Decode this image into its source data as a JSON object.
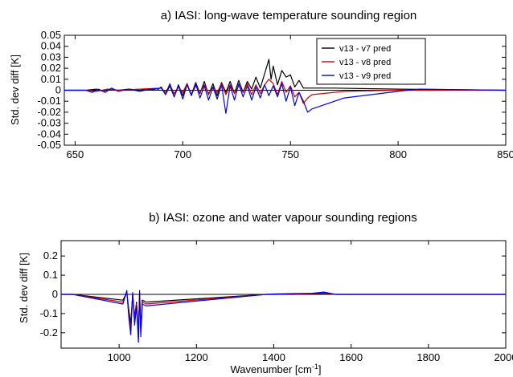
{
  "chart_data": [
    {
      "type": "line",
      "title": "a) IASI: long-wave temperature sounding region",
      "xlabel": "",
      "ylabel": "Std. dev diff [K]",
      "xlim": [
        645,
        850
      ],
      "ylim": [
        -0.05,
        0.05
      ],
      "xticks": [
        650,
        700,
        750,
        800,
        850
      ],
      "yticks": [
        -0.05,
        -0.04,
        -0.03,
        -0.02,
        -0.01,
        0,
        0.01,
        0.02,
        0.03,
        0.04,
        0.05
      ],
      "ytick_labels": [
        "-0.05",
        "-0.04",
        "-0.03",
        "-0.02",
        "-0.01",
        "0",
        "0.01",
        "0.02",
        "0.03",
        "0.04",
        "0.05"
      ],
      "grid": false,
      "legend_position": "top-right",
      "zero_line": true,
      "series": [
        {
          "name": "v13 - v7 pred",
          "color": "#000000",
          "x": [
            645,
            655,
            660,
            663,
            666,
            670,
            675,
            680,
            685,
            688,
            690,
            692,
            694,
            696,
            698,
            700,
            702,
            704,
            706,
            708,
            710,
            712,
            714,
            716,
            718,
            720,
            722,
            724,
            726,
            728,
            730,
            732,
            734,
            736,
            738,
            740,
            741,
            742,
            744,
            746,
            748,
            750,
            752,
            754,
            756,
            760,
            770,
            800,
            850
          ],
          "y": [
            0,
            0,
            0.001,
            -0.001,
            0.001,
            0,
            0.001,
            0,
            0.001,
            0,
            0.003,
            -0.004,
            0.004,
            -0.006,
            0.005,
            -0.005,
            0.006,
            -0.004,
            0.007,
            -0.003,
            0.008,
            -0.004,
            0.006,
            -0.005,
            0.007,
            -0.002,
            0.008,
            -0.003,
            0.009,
            -0.002,
            0.008,
            0.001,
            0.012,
            0.002,
            0.015,
            0.028,
            0.01,
            0.022,
            0.005,
            0.018,
            0.012,
            0.014,
            0.003,
            0.009,
            0.002,
            0.002,
            0.002,
            0.001,
            0
          ]
        },
        {
          "name": "v13 - v8 pred",
          "color": "#d00000",
          "x": [
            645,
            655,
            660,
            665,
            670,
            680,
            690,
            692,
            694,
            696,
            698,
            700,
            702,
            704,
            706,
            708,
            710,
            712,
            714,
            716,
            718,
            720,
            722,
            724,
            726,
            728,
            730,
            732,
            734,
            736,
            738,
            740,
            742,
            744,
            746,
            748,
            750,
            752,
            754,
            756,
            758,
            760,
            775,
            800,
            850
          ],
          "y": [
            0,
            0,
            -0.001,
            0.001,
            0,
            0.001,
            0.002,
            -0.002,
            0.005,
            -0.003,
            0.003,
            -0.002,
            0.006,
            -0.004,
            0.004,
            -0.002,
            0.005,
            -0.003,
            0.003,
            -0.002,
            0.006,
            -0.004,
            0.005,
            -0.003,
            0.004,
            -0.002,
            0.006,
            -0.004,
            0.005,
            -0.003,
            0.005,
            0.01,
            0.006,
            -0.004,
            0.008,
            -0.002,
            0.004,
            -0.006,
            -0.002,
            -0.012,
            -0.007,
            -0.004,
            -0.001,
            0,
            0
          ]
        },
        {
          "name": "v13 - v9 pred",
          "color": "#0000ee",
          "x": [
            645,
            655,
            658,
            661,
            664,
            667,
            670,
            675,
            680,
            685,
            690,
            692,
            694,
            696,
            698,
            700,
            702,
            704,
            706,
            708,
            710,
            712,
            714,
            716,
            718,
            720,
            722,
            724,
            726,
            728,
            730,
            732,
            734,
            736,
            738,
            740,
            742,
            744,
            746,
            748,
            750,
            752,
            754,
            756,
            758,
            760,
            775,
            800,
            810,
            850
          ],
          "y": [
            0,
            0,
            -0.002,
            0.001,
            -0.002,
            0.002,
            -0.001,
            0.001,
            -0.001,
            0.001,
            0.002,
            -0.004,
            0.006,
            -0.006,
            0.004,
            -0.008,
            0.005,
            -0.005,
            0.006,
            -0.007,
            0.004,
            -0.009,
            0.003,
            -0.008,
            0.005,
            -0.021,
            0.004,
            -0.009,
            0.006,
            -0.006,
            0.004,
            -0.009,
            0.003,
            -0.007,
            0.005,
            -0.005,
            0.004,
            -0.006,
            0.006,
            -0.01,
            0.003,
            -0.014,
            -0.002,
            -0.01,
            -0.02,
            -0.017,
            -0.007,
            -0.001,
            0.001,
            0
          ]
        }
      ]
    },
    {
      "type": "line",
      "title": "b) IASI: ozone and water vapour sounding regions",
      "xlabel": "Wavenumber [cm",
      "xlabel_sup": "-1",
      "xlabel_tail": "]",
      "ylabel": "Std. dev diff [K]",
      "xlim": [
        850,
        2000
      ],
      "ylim": [
        -0.28,
        0.28
      ],
      "xticks": [
        1000,
        1200,
        1400,
        1600,
        1800,
        2000
      ],
      "yticks": [
        -0.2,
        -0.1,
        0,
        0.1,
        0.2
      ],
      "ytick_labels": [
        "-0.2",
        "-0.1",
        "0",
        "0.1",
        "0.2"
      ],
      "grid": false,
      "zero_line": true,
      "series": [
        {
          "name": "v13 - v7 pred",
          "color": "#000000",
          "x": [
            850,
            880,
            1010,
            1020,
            1025,
            1030,
            1035,
            1040,
            1045,
            1050,
            1053,
            1056,
            1060,
            1070,
            1380,
            1400,
            1450,
            1500,
            1530,
            1540,
            1560,
            1600,
            2000
          ],
          "y": [
            0,
            0,
            -0.03,
            0.01,
            -0.08,
            -0.15,
            0.0,
            -0.12,
            -0.04,
            -0.2,
            0.01,
            -0.18,
            -0.03,
            -0.04,
            0,
            0,
            0,
            0.003,
            0.006,
            0.004,
            0,
            0,
            0
          ]
        },
        {
          "name": "v13 - v8 pred",
          "color": "#d00000",
          "x": [
            850,
            880,
            1010,
            1020,
            1025,
            1030,
            1035,
            1040,
            1045,
            1050,
            1053,
            1056,
            1060,
            1070,
            1380,
            1400,
            1450,
            1500,
            1530,
            1540,
            1560,
            1600,
            2000
          ],
          "y": [
            0,
            0,
            -0.04,
            0.01,
            -0.1,
            -0.18,
            0.0,
            -0.13,
            -0.05,
            -0.22,
            0.01,
            -0.2,
            -0.04,
            -0.05,
            0,
            0,
            0.002,
            0.004,
            0.008,
            0.005,
            0,
            0,
            0
          ]
        },
        {
          "name": "v13 - v9 pred",
          "color": "#0000ee",
          "x": [
            850,
            880,
            1010,
            1020,
            1025,
            1030,
            1035,
            1040,
            1045,
            1050,
            1053,
            1056,
            1060,
            1070,
            1380,
            1400,
            1450,
            1500,
            1530,
            1540,
            1560,
            1600,
            2000
          ],
          "y": [
            0,
            0,
            -0.05,
            0.02,
            -0.12,
            -0.21,
            0.01,
            -0.16,
            -0.06,
            -0.25,
            0.02,
            -0.22,
            -0.05,
            -0.06,
            0,
            0.002,
            0.004,
            0.006,
            0.012,
            0.008,
            0,
            0,
            0
          ]
        }
      ]
    }
  ]
}
